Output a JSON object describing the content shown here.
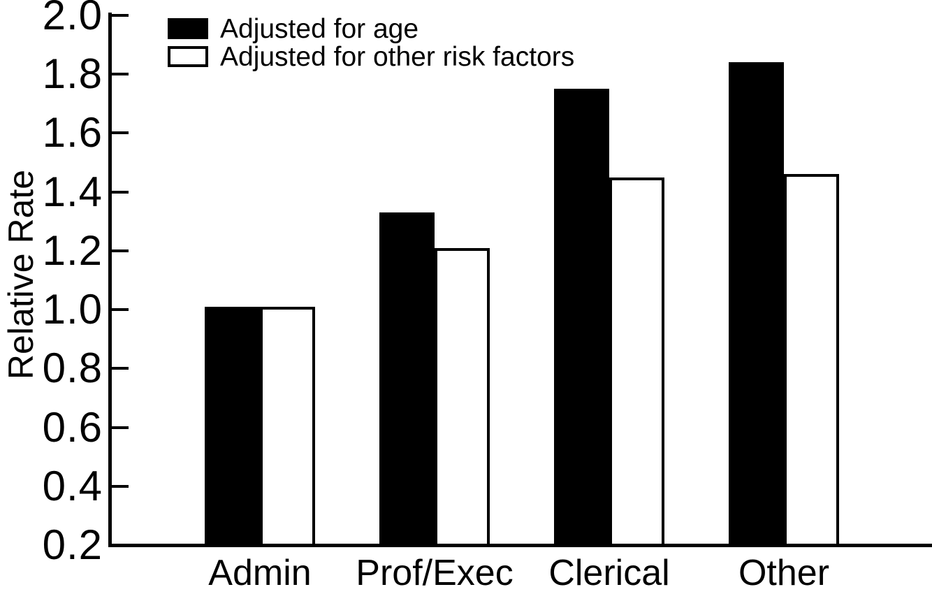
{
  "figure": {
    "ylabel": "Relative Rate"
  },
  "chart_data": {
    "type": "bar",
    "title": "",
    "xlabel": "",
    "ylabel": "Relative Rate",
    "categories": [
      "Admin",
      "Prof/Exec",
      "Clerical",
      "Other"
    ],
    "series": [
      {
        "name": "Adjusted for age",
        "swatch": "black",
        "values": [
          1.01,
          1.33,
          1.75,
          1.84
        ]
      },
      {
        "name": "Adjusted for other risk factors",
        "swatch": "white",
        "values": [
          1.01,
          1.21,
          1.45,
          1.46
        ]
      }
    ],
    "ylim": [
      0.2,
      2.0
    ],
    "ytick_step": 0.2,
    "yticks": [
      "2.0",
      "1.8",
      "1.6",
      "1.4",
      "1.2",
      "1.0",
      "0.8",
      "0.6",
      "0.4",
      "0.2"
    ],
    "grid": false,
    "legend_position": "top-left",
    "colors": {
      "foreground": "#000000",
      "background": "#ffffff"
    }
  }
}
